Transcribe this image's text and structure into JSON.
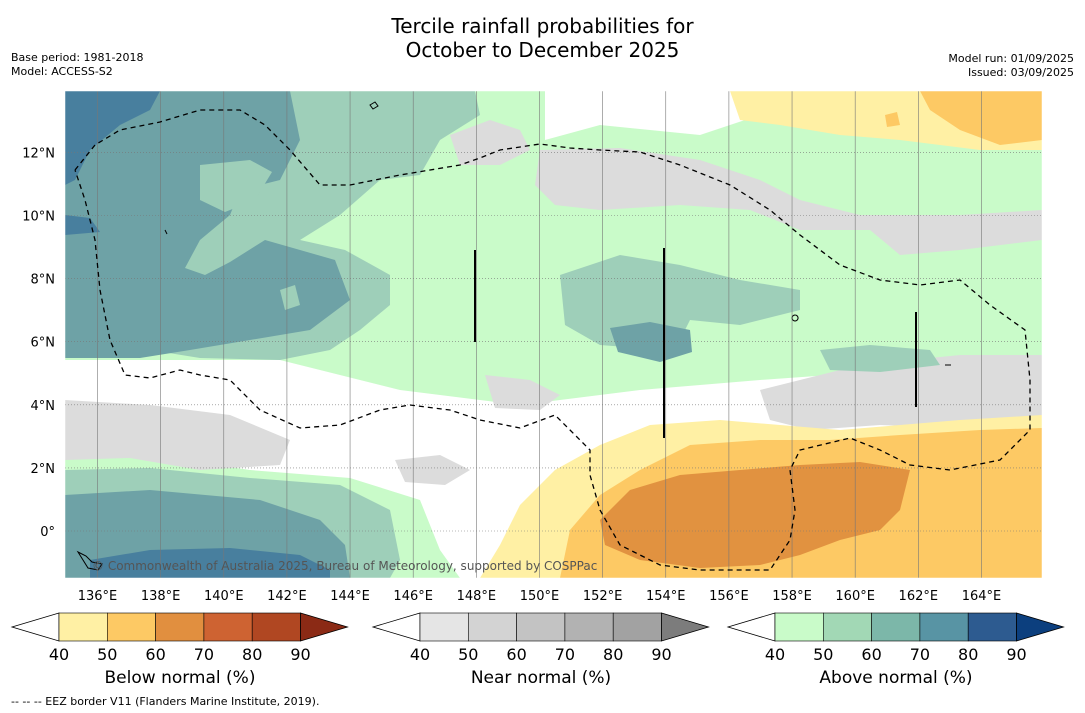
{
  "title_line1": "Tercile rainfall probabilities for",
  "title_line2": "October to December 2025",
  "base_period": "Base period: 1981-2018",
  "model": "Model: ACCESS-S2",
  "model_run": "Model run: 01/09/2025",
  "issued": "Issued: 03/09/2025",
  "watermark": "© Commonwealth of Australia 2025, Bureau of Meteorology, supported by COSPPac",
  "footer": "--  --  -- EEZ border V11 (Flanders Marine Institute, 2019).",
  "lat_labels": [
    "12°N",
    "10°N",
    "8°N",
    "6°N",
    "4°N",
    "2°N",
    "0°"
  ],
  "lon_labels": [
    "136°E",
    "138°E",
    "140°E",
    "142°E",
    "144°E",
    "146°E",
    "148°E",
    "150°E",
    "152°E",
    "154°E",
    "156°E",
    "158°E",
    "160°E",
    "162°E",
    "164°E"
  ],
  "colorbars": [
    {
      "label": "Below normal (%)",
      "ticks": [
        "40",
        "50",
        "60",
        "70",
        "80",
        "90"
      ],
      "colors": [
        "#ffffff",
        "#fff0a4",
        "#fdc964",
        "#e18f3f",
        "#ce6332",
        "#b04722",
        "#8b2a15"
      ]
    },
    {
      "label": "Near normal (%)",
      "ticks": [
        "40",
        "50",
        "60",
        "70",
        "80",
        "90"
      ],
      "colors": [
        "#ffffff",
        "#e5e5e5",
        "#d3d3d3",
        "#c3c3c3",
        "#b2b2b2",
        "#a2a2a2",
        "#7c7c7c"
      ]
    },
    {
      "label": "Above normal (%)",
      "ticks": [
        "40",
        "50",
        "60",
        "70",
        "80",
        "90"
      ],
      "colors": [
        "#ffffff",
        "#c9fbc9",
        "#a2d8b5",
        "#7cb7a9",
        "#5894a4",
        "#2d5b90",
        "#0c3f7e"
      ]
    }
  ],
  "colors": {
    "above_50": "#c9fbc9",
    "above_60": "#9ecfb9",
    "above_70": "#6ea2a6",
    "above_80": "#487f9e",
    "near_50": "#dcdcdc",
    "below_50": "#fff0a4",
    "below_60": "#fdc964",
    "below_70": "#e19240"
  }
}
